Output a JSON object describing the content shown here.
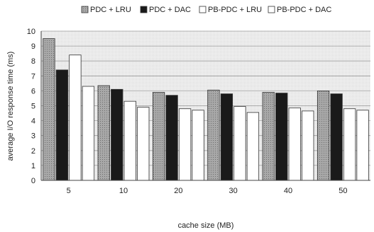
{
  "chart_data": {
    "type": "bar",
    "title": "",
    "xlabel": "cache size (MB)",
    "ylabel": "average I/O response time (ms)",
    "categories": [
      "5",
      "10",
      "20",
      "30",
      "40",
      "50"
    ],
    "ylim": [
      0,
      10
    ],
    "yticks": [
      0,
      1,
      2,
      3,
      4,
      5,
      6,
      7,
      8,
      9,
      10
    ],
    "grid": true,
    "legend_position": "top",
    "series": [
      {
        "name": "PDC + LRU",
        "values": [
          9.5,
          6.35,
          5.9,
          6.05,
          5.9,
          6.0
        ],
        "color": "#9a9a9a",
        "pattern": "dotted-gray"
      },
      {
        "name": "PDC + DAC",
        "values": [
          7.4,
          6.1,
          5.7,
          5.8,
          5.85,
          5.8
        ],
        "color": "#1a1a1a",
        "pattern": "solid-black"
      },
      {
        "name": "PB-PDC + LRU",
        "values": [
          8.4,
          5.3,
          4.8,
          4.95,
          4.85,
          4.8
        ],
        "color": "#ffffff",
        "pattern": "white"
      },
      {
        "name": "PB-PDC + DAC",
        "values": [
          6.3,
          4.9,
          4.7,
          4.55,
          4.65,
          4.7
        ],
        "color": "#ffffff",
        "pattern": "white"
      }
    ]
  }
}
